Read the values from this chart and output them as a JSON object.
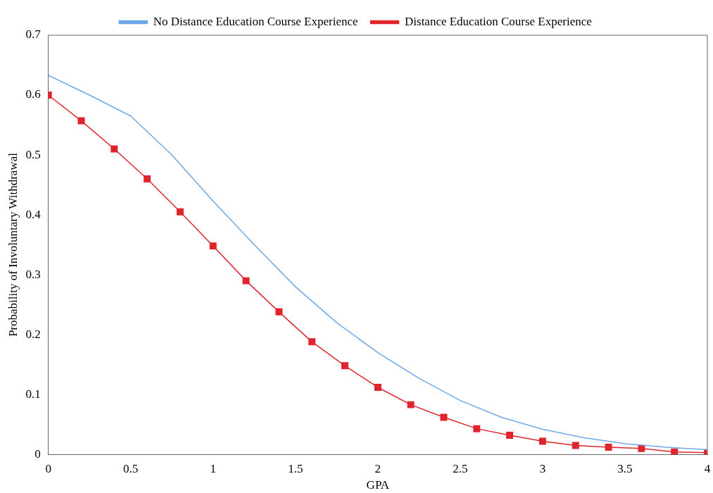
{
  "chart_data": {
    "type": "line",
    "xlabel": "GPA",
    "ylabel": "Probability of Involuntary Withdrawal",
    "xlim": [
      0,
      4
    ],
    "xticks": [
      0,
      0.5,
      1,
      1.5,
      2,
      2.5,
      3,
      3.5,
      4
    ],
    "ylim": [
      0,
      0.7
    ],
    "yticks": [
      0,
      0.1,
      0.2,
      0.3,
      0.4,
      0.5,
      0.6,
      0.7
    ],
    "grid": false,
    "legend": "top",
    "series": [
      {
        "name": "No Distance Education Course Experience",
        "color": "#6fa8e8",
        "marker": "none",
        "x": [
          0,
          0.25,
          0.5,
          0.75,
          1,
          1.25,
          1.5,
          1.75,
          2,
          2.25,
          2.5,
          2.75,
          3,
          3.25,
          3.5,
          3.75,
          4
        ],
        "values": [
          0.633,
          0.6,
          0.565,
          0.5,
          0.423,
          0.35,
          0.28,
          0.22,
          0.17,
          0.127,
          0.09,
          0.062,
          0.042,
          0.028,
          0.018,
          0.012,
          0.008
        ]
      },
      {
        "name": "Distance Education Course Experience",
        "color": "#e0242c",
        "marker": "square",
        "x": [
          0,
          0.2,
          0.4,
          0.6,
          0.8,
          1,
          1.2,
          1.4,
          1.6,
          1.8,
          2,
          2.2,
          2.4,
          2.6,
          2.8,
          3,
          3.2,
          3.4,
          3.6,
          3.8,
          4
        ],
        "values": [
          0.6,
          0.557,
          0.51,
          0.46,
          0.405,
          0.348,
          0.29,
          0.238,
          0.188,
          0.148,
          0.112,
          0.083,
          0.062,
          0.043,
          0.032,
          0.022,
          0.015,
          0.012,
          0.01,
          0.004,
          0.003
        ]
      }
    ]
  }
}
